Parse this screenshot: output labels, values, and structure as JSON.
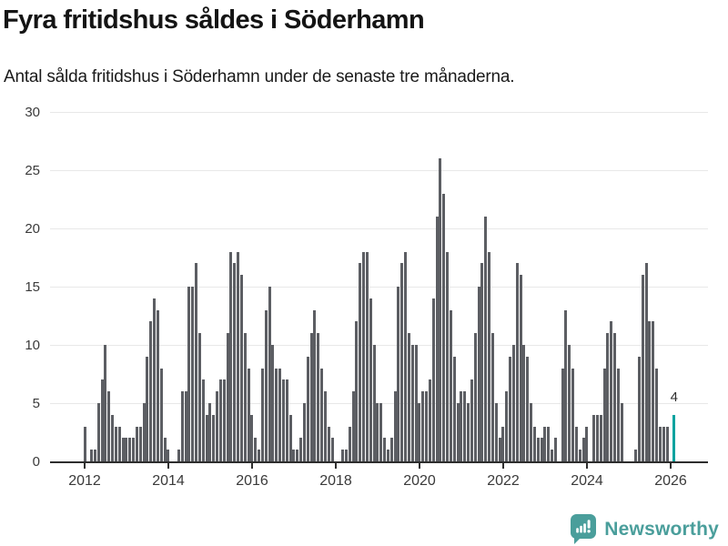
{
  "title": "Fyra fritidshus såldes i Söderhamn",
  "subtitle": "Antal sålda fritidshus i Söderhamn under de senaste tre månaderna.",
  "footer": {
    "brand": "Newsworthy",
    "brand_color": "#4a9e9b",
    "icon": "newsworthy-speech-bubble-barchart-icon"
  },
  "chart_data": {
    "type": "bar",
    "title": "Fyra fritidshus såldes i Söderhamn",
    "subtitle": "Antal sålda fritidshus i Söderhamn under de senaste tre månaderna.",
    "x_start": "2012-01",
    "x_end": "2026-02",
    "x_freq": "monthly",
    "xtick_labels": [
      "2012",
      "2014",
      "2016",
      "2018",
      "2020",
      "2022",
      "2024",
      "2026"
    ],
    "ylim": [
      0,
      30
    ],
    "yticks": [
      0,
      5,
      10,
      15,
      20,
      25,
      30
    ],
    "grid": "horizontal",
    "legend": "none",
    "bar_color": "#5c5e63",
    "highlight_color": "#00a39f",
    "axis_color": "#2e2e2e",
    "gridline_color": "#e8e8e8",
    "tick_label_color": "#3a3a3a",
    "highlight_index": 169,
    "last_value_label": "4",
    "values": [
      3,
      0,
      1,
      1,
      5,
      7,
      10,
      6,
      4,
      3,
      3,
      2,
      2,
      2,
      2,
      3,
      3,
      5,
      9,
      12,
      14,
      13,
      8,
      2,
      1,
      0,
      0,
      1,
      6,
      6,
      15,
      15,
      17,
      11,
      7,
      4,
      5,
      4,
      6,
      7,
      7,
      11,
      18,
      17,
      18,
      16,
      11,
      8,
      4,
      2,
      1,
      8,
      13,
      15,
      10,
      8,
      8,
      7,
      7,
      4,
      1,
      1,
      2,
      5,
      9,
      11,
      13,
      11,
      8,
      6,
      3,
      2,
      0,
      0,
      1,
      1,
      3,
      6,
      12,
      17,
      18,
      18,
      14,
      10,
      5,
      5,
      2,
      1,
      2,
      6,
      15,
      17,
      18,
      11,
      10,
      10,
      5,
      6,
      6,
      7,
      14,
      21,
      26,
      23,
      18,
      13,
      9,
      5,
      6,
      6,
      5,
      7,
      11,
      15,
      17,
      21,
      18,
      11,
      5,
      2,
      3,
      6,
      9,
      10,
      17,
      16,
      10,
      9,
      5,
      3,
      2,
      2,
      3,
      3,
      1,
      2,
      0,
      8,
      13,
      10,
      8,
      3,
      1,
      2,
      3,
      0,
      4,
      4,
      4,
      8,
      11,
      12,
      11,
      8,
      5,
      0,
      0,
      0,
      1,
      9,
      16,
      17,
      12,
      12,
      8,
      3,
      3,
      3,
      0,
      4
    ]
  }
}
